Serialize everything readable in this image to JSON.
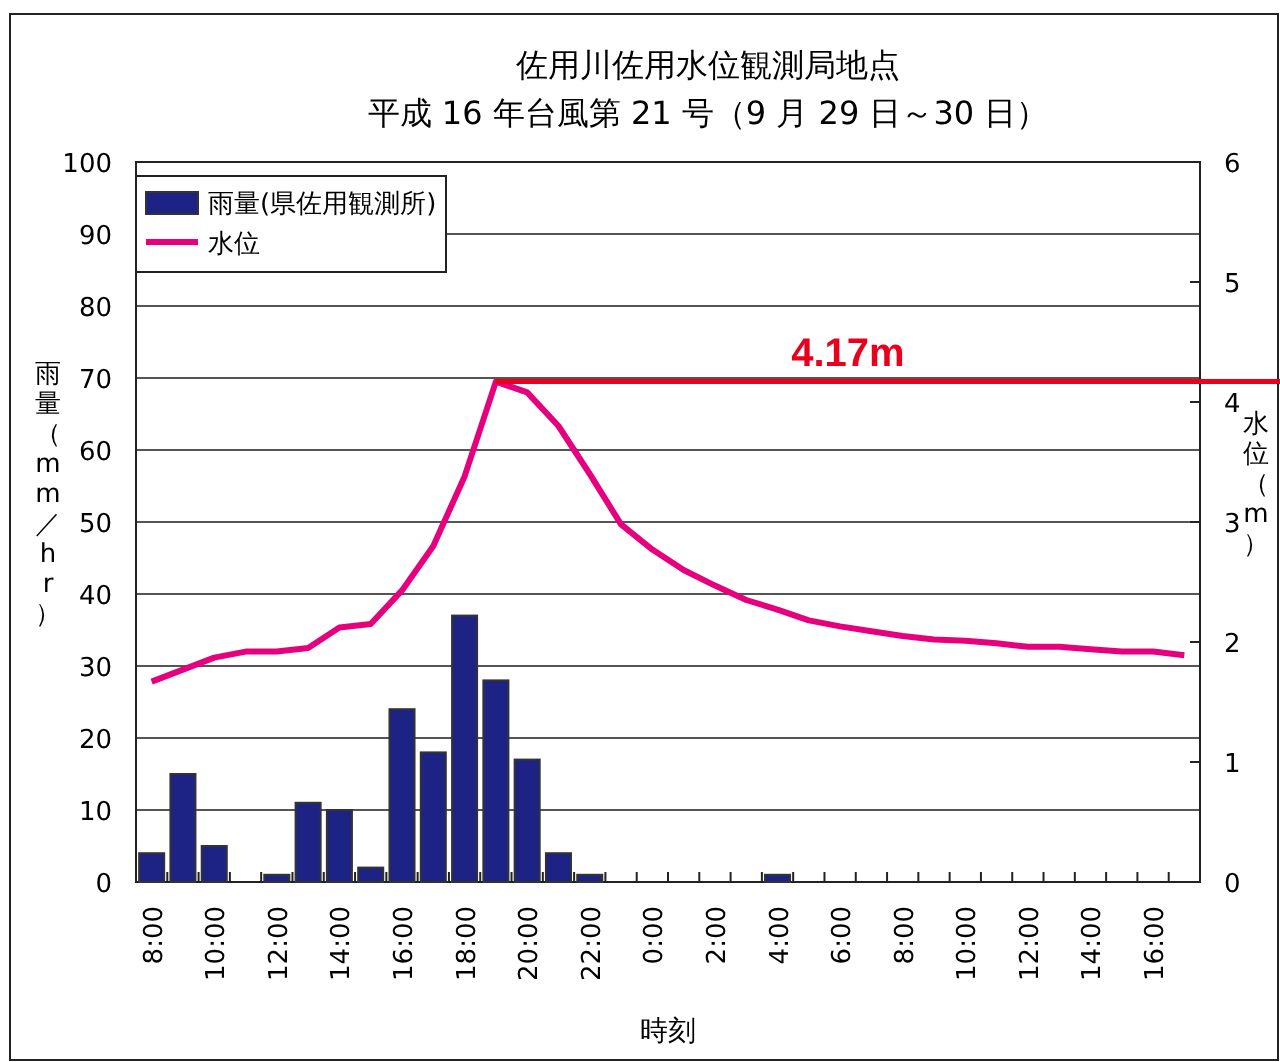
{
  "chart_data": {
    "type": "bar",
    "title": "佐用川佐用水位観測局地点",
    "subtitle": "平成 16 年台風第 21 号（9 月 29 日～30 日）",
    "xlabel": "時刻",
    "ylabel": "雨量（mm／hr）",
    "y2label": "水位（m）",
    "categories": [
      "8:00",
      null,
      "10:00",
      null,
      "12:00",
      null,
      "14:00",
      null,
      "16:00",
      null,
      "18:00",
      null,
      "20:00",
      null,
      "22:00",
      null,
      "0:00",
      null,
      "2:00",
      null,
      "4:00",
      null,
      "6:00",
      null,
      "8:00",
      null,
      "10:00",
      null,
      "12:00",
      null,
      "14:00",
      null,
      "16:00",
      null
    ],
    "series": [
      {
        "name": "雨量(県佐用観測所)",
        "color": "#1c2385",
        "values": [
          4,
          15,
          5,
          0,
          1,
          11,
          10,
          2,
          24,
          18,
          37,
          28,
          17,
          4,
          1,
          0,
          0,
          0,
          0,
          0,
          1,
          0,
          0,
          0,
          0,
          0,
          0,
          0,
          0,
          0,
          0,
          0,
          0,
          0
        ]
      },
      {
        "name": "水位",
        "type": "line",
        "axis": "y2",
        "color": "#e6007e",
        "values": [
          1.67,
          1.77,
          1.87,
          1.92,
          1.92,
          1.95,
          2.12,
          2.15,
          2.43,
          2.8,
          3.38,
          4.17,
          4.08,
          3.8,
          3.4,
          2.98,
          2.77,
          2.6,
          2.47,
          2.35,
          2.27,
          2.18,
          2.13,
          2.09,
          2.05,
          2.02,
          2.01,
          1.99,
          1.96,
          1.96,
          1.94,
          1.92,
          1.92,
          1.89
        ]
      }
    ],
    "ylim": [
      0,
      100
    ],
    "yticks": [
      0,
      10,
      20,
      30,
      40,
      50,
      60,
      70,
      80,
      90,
      100
    ],
    "y2lim": [
      0,
      6
    ],
    "y2ticks": [
      0,
      1,
      2,
      3,
      4,
      5,
      6
    ],
    "ref_lines": [
      {
        "axis": "y2",
        "value": 4.17,
        "label": "4.17m",
        "color": "#e8001c"
      }
    ],
    "grid": "y",
    "legend": "top left",
    "marker": "none"
  }
}
